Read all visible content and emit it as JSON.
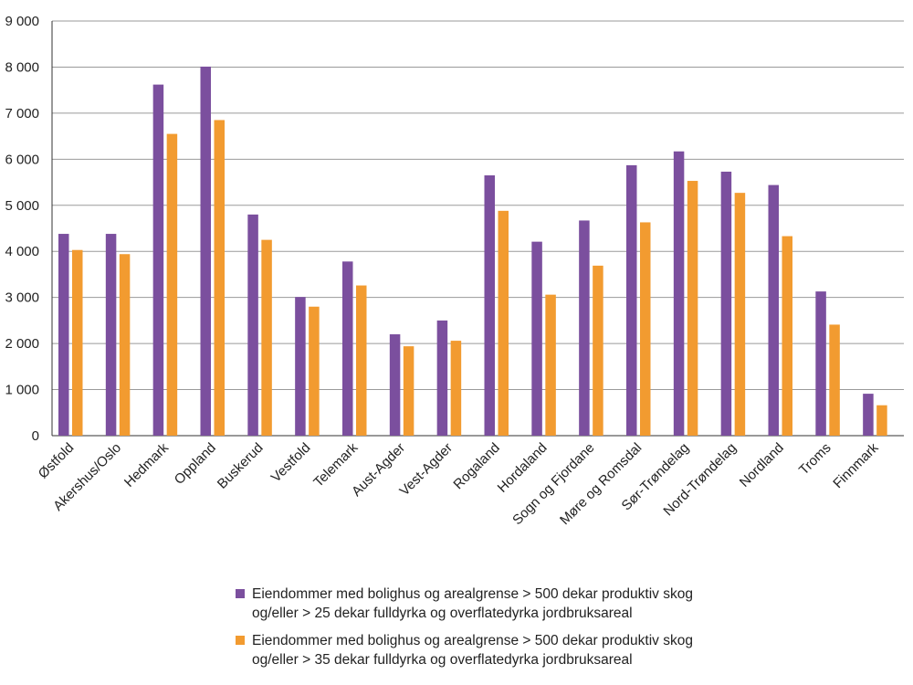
{
  "chart_data": {
    "type": "bar",
    "categories": [
      "Østfold",
      "Akershus/Oslo",
      "Hedmark",
      "Oppland",
      "Buskerud",
      "Vestfold",
      "Telemark",
      "Aust-Agder",
      "Vest-Agder",
      "Rogaland",
      "Hordaland",
      "Sogn og Fjordane",
      "Møre og Romsdal",
      "Sør-Trøndelag",
      "Nord-Trøndelag",
      "Nordland",
      "Troms",
      "Finnmark"
    ],
    "series": [
      {
        "name": "Eiendommer med bolighus og arealgrense > 500 dekar produktiv skog og/eller > 25 dekar fulldyrka og overflatedyrka jordbruksareal",
        "name_line1": "Eiendommer med bolighus og arealgrense > 500 dekar produktiv skog",
        "name_line2": "og/eller > 25 dekar fulldyrka og overflatedyrka jordbruksareal",
        "color": "#7b4f9e",
        "values": [
          4380,
          4380,
          7620,
          8010,
          4800,
          3010,
          3780,
          2200,
          2500,
          5650,
          4210,
          4670,
          5870,
          6170,
          5730,
          5440,
          3130,
          910
        ]
      },
      {
        "name": "Eiendommer med bolighus og arealgrense > 500 dekar produktiv skog og/eller > 35 dekar fulldyrka og overflatedyrka jordbruksareal",
        "name_line1": "Eiendommer med bolighus og arealgrense > 500 dekar produktiv skog",
        "name_line2": "og/eller > 35 dekar fulldyrka og overflatedyrka jordbruksareal",
        "color": "#f29b30",
        "values": [
          4030,
          3940,
          6550,
          6850,
          4250,
          2800,
          3260,
          1940,
          2060,
          4880,
          3060,
          3690,
          4630,
          5530,
          5270,
          4330,
          2410,
          660
        ]
      }
    ],
    "y_ticks": [
      "0",
      "1 000",
      "2 000",
      "3 000",
      "4 000",
      "5 000",
      "6 000",
      "7 000",
      "8 000",
      "9 000"
    ],
    "ylim": [
      0,
      9000
    ],
    "y_step": 1000,
    "grid": true,
    "legend_position": "bottom",
    "title": "",
    "xlabel": "",
    "ylabel": ""
  }
}
